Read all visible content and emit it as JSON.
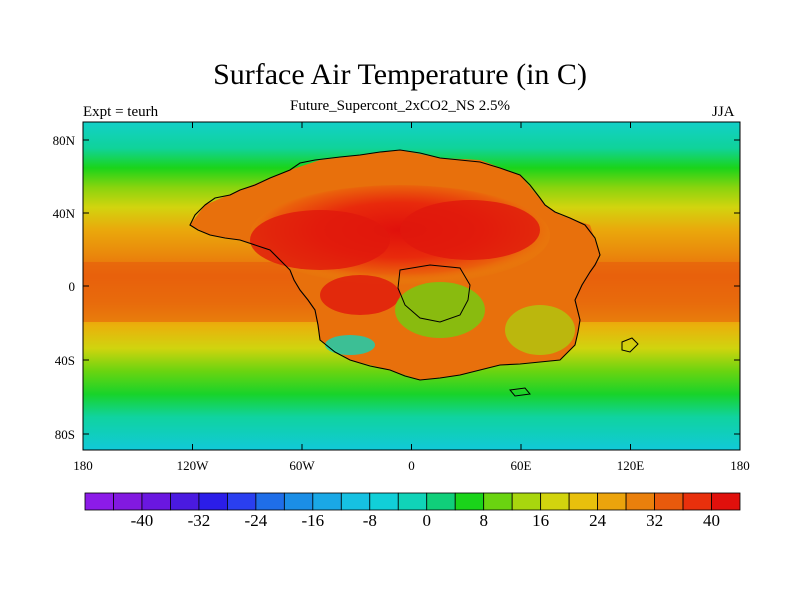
{
  "title": "Surface Air Temperature (in C)",
  "subtitle": "Future_Supercont_2xCO2_NS 2.5%",
  "experiment_label": "Expt = teurh",
  "season_label": "JJA",
  "lat_ticks": [
    "80N",
    "40N",
    "0",
    "40S",
    "80S"
  ],
  "lon_ticks": [
    "180",
    "120W",
    "60W",
    "0",
    "60E",
    "120E",
    "180"
  ],
  "colorbar": {
    "labels": [
      "-40",
      "-32",
      "-24",
      "-16",
      "-8",
      "0",
      "8",
      "16",
      "24",
      "32",
      "40"
    ],
    "colors": [
      "#8c1be8",
      "#8219e0",
      "#6a17e0",
      "#4a1ae0",
      "#2b1de8",
      "#2a3ff0",
      "#1f6ee8",
      "#1b8ee6",
      "#1aa8e6",
      "#16c1e2",
      "#11cfd8",
      "#10d3b8",
      "#10cf7a",
      "#1ad41a",
      "#6ad410",
      "#a8d60e",
      "#d2d40e",
      "#e8c00c",
      "#eca40c",
      "#ea800c",
      "#e85a0c",
      "#e8300c",
      "#e0100c"
    ]
  },
  "chart_data": {
    "type": "heatmap",
    "title": "Surface Air Temperature (in C)",
    "subtitle": "Future_Supercont_2xCO2_NS 2.5%",
    "variable": "Surface Air Temperature",
    "units": "C",
    "season": "JJA",
    "experiment": "teurh",
    "lon_range": [
      -180,
      180
    ],
    "lat_range": [
      -90,
      90
    ],
    "color_range": [
      -44,
      48
    ],
    "color_interval": 4,
    "zonal_pattern": [
      {
        "lat": 90,
        "value": 4
      },
      {
        "lat": 75,
        "value": 8
      },
      {
        "lat": 60,
        "value": 14
      },
      {
        "lat": 45,
        "value": 20
      },
      {
        "lat": 30,
        "value": 24
      },
      {
        "lat": 15,
        "value": 30
      },
      {
        "lat": 5,
        "value": 33
      },
      {
        "lat": -10,
        "value": 30
      },
      {
        "lat": -25,
        "value": 24
      },
      {
        "lat": -40,
        "value": 17
      },
      {
        "lat": -55,
        "value": 10
      },
      {
        "lat": -70,
        "value": 4
      },
      {
        "lat": -90,
        "value": 0
      }
    ],
    "supercontinent_land_max": 44
  }
}
